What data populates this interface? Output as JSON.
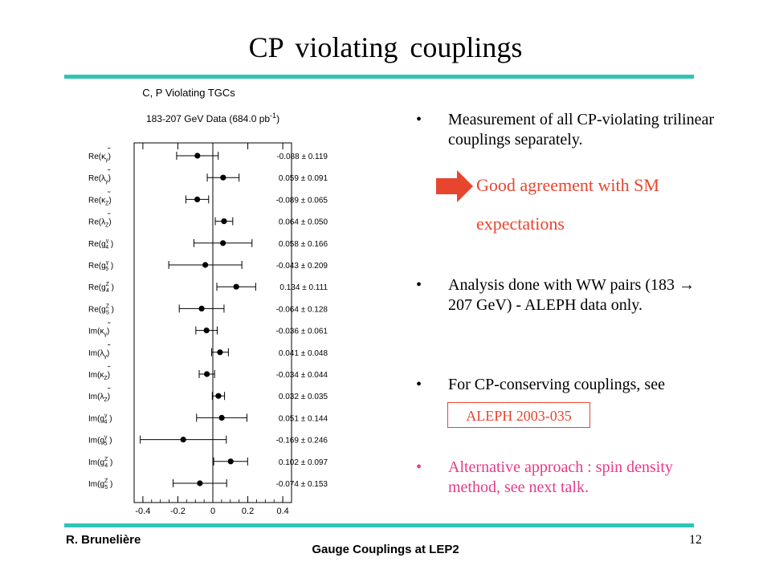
{
  "slide": {
    "title": "CP violating couplings",
    "bullets": [
      "Measurement of all CP-violating trilinear couplings separately.",
      "Analysis done with WW pairs (183 → 207 GeV) - ALEPH data only.",
      "For CP-conserving couplings, see",
      "Alternative approach : spin density method, see next talk."
    ],
    "callout_line1": "Good agreement with SM",
    "callout_line2": "expectations",
    "reference": "ALEPH 2003-035",
    "author": "R. Brunelière",
    "footer": "Gauge Couplings at LEP2",
    "page_number": "12",
    "colors": {
      "accent_rule": "#2ec4b6",
      "highlight": "#e8452f",
      "pink_text": "#e63a8a"
    }
  },
  "chart_data": {
    "type": "scatter",
    "title": "C, P Violating TGCs",
    "subtitle_main": "183-207 GeV Data (684.0 pb",
    "subtitle_sup": "-1",
    "subtitle_end": ")",
    "xlim": [
      -0.45,
      0.45
    ],
    "xticks": [
      -0.4,
      -0.2,
      0,
      0.2,
      0.4
    ],
    "xtick_labels": [
      "-0.4",
      "-0.2",
      "0",
      "0.2",
      "0.4"
    ],
    "vertical_line_at": 0,
    "points": [
      {
        "fn": "Re(",
        "sym": "κ",
        "accent": "˜",
        "sub": "γ",
        "sup": "",
        "value": -0.088,
        "error": 0.119,
        "label": "-0.088 ± 0.119"
      },
      {
        "fn": "Re(",
        "sym": "λ",
        "accent": "˜",
        "sub": "γ",
        "sup": "",
        "value": 0.059,
        "error": 0.091,
        "label": "0.059 ± 0.091"
      },
      {
        "fn": "Re(",
        "sym": "κ",
        "accent": "˜",
        "sub": "Z",
        "sup": "",
        "value": -0.089,
        "error": 0.065,
        "label": "-0.089 ± 0.065"
      },
      {
        "fn": "Re(",
        "sym": "λ",
        "accent": "˜",
        "sub": "Z",
        "sup": "",
        "value": 0.064,
        "error": 0.05,
        "label": "0.064 ± 0.050"
      },
      {
        "fn": "Re(",
        "sym": "g",
        "accent": "",
        "sub": "4",
        "sup": "γ",
        "value": 0.058,
        "error": 0.166,
        "label": "0.058 ± 0.166"
      },
      {
        "fn": "Re(",
        "sym": "g",
        "accent": "",
        "sub": "5",
        "sup": "γ",
        "value": -0.043,
        "error": 0.209,
        "label": "-0.043 ± 0.209"
      },
      {
        "fn": "Re(",
        "sym": "g",
        "accent": "",
        "sub": "4",
        "sup": "Z",
        "value": 0.134,
        "error": 0.111,
        "label": "0.134 ± 0.111"
      },
      {
        "fn": "Re(",
        "sym": "g",
        "accent": "",
        "sub": "5",
        "sup": "Z",
        "value": -0.064,
        "error": 0.128,
        "label": "-0.064 ± 0.128"
      },
      {
        "fn": "Im(",
        "sym": "κ",
        "accent": "˜",
        "sub": "γ",
        "sup": "",
        "value": -0.036,
        "error": 0.061,
        "label": "-0.036 ± 0.061"
      },
      {
        "fn": "Im(",
        "sym": "λ",
        "accent": "˜",
        "sub": "γ",
        "sup": "",
        "value": 0.041,
        "error": 0.048,
        "label": "0.041 ± 0.048"
      },
      {
        "fn": "Im(",
        "sym": "κ",
        "accent": "˜",
        "sub": "Z",
        "sup": "",
        "value": -0.034,
        "error": 0.044,
        "label": "-0.034 ± 0.044"
      },
      {
        "fn": "Im(",
        "sym": "λ",
        "accent": "˜",
        "sub": "Z",
        "sup": "",
        "value": 0.032,
        "error": 0.035,
        "label": "0.032 ± 0.035"
      },
      {
        "fn": "Im(",
        "sym": "g",
        "accent": "",
        "sub": "4",
        "sup": "γ",
        "value": 0.051,
        "error": 0.144,
        "label": "0.051 ± 0.144"
      },
      {
        "fn": "Im(",
        "sym": "g",
        "accent": "",
        "sub": "5",
        "sup": "γ",
        "value": -0.169,
        "error": 0.246,
        "label": "-0.169 ± 0.246"
      },
      {
        "fn": "Im(",
        "sym": "g",
        "accent": "",
        "sub": "4",
        "sup": "Z",
        "value": 0.102,
        "error": 0.097,
        "label": "0.102 ± 0.097"
      },
      {
        "fn": "Im(",
        "sym": "g",
        "accent": "",
        "sub": "5",
        "sup": "Z",
        "value": -0.074,
        "error": 0.153,
        "label": "-0.074 ± 0.153"
      }
    ]
  }
}
